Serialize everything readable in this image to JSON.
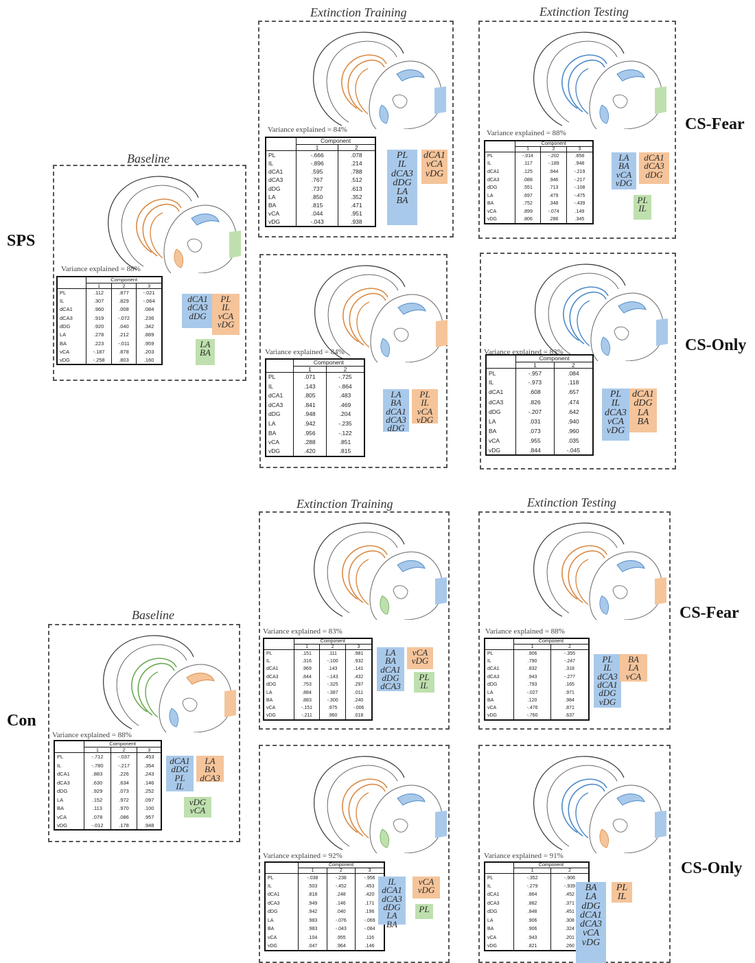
{
  "colors": {
    "blue": "#a9c9ea",
    "orange": "#f5c49a",
    "green": "#bfe0ae"
  },
  "icons": [
    "brain-section-icon"
  ],
  "row_labels": {
    "sps": "SPS",
    "con": "Con",
    "cs_fear_top": "CS-Fear",
    "cs_only_top": "CS-Only",
    "cs_fear_bottom": "CS-Fear",
    "cs_only_bottom": "CS-Only"
  },
  "titles": {
    "baseline": "Baseline",
    "ext_training": "Extinction Training",
    "ext_testing": "Extinction Testing"
  },
  "table_header": "Component",
  "rows": [
    "PL",
    "IL",
    "dCA1",
    "dCA3",
    "dDG",
    "LA",
    "BA",
    "vCA",
    "vDG"
  ],
  "panels": [
    {
      "id": "sps-baseline",
      "variance": "Variance explained = 88%",
      "cols": [
        "1",
        "2",
        "3"
      ],
      "values": [
        [
          ".112",
          ".877",
          "-.021"
        ],
        [
          ".307",
          ".829",
          "-.064"
        ],
        [
          ".960",
          ".008",
          ".084"
        ],
        [
          ".919",
          "-.072",
          ".236"
        ],
        [
          ".920",
          ".040",
          ".342"
        ],
        [
          ".278",
          ".212",
          ".889"
        ],
        [
          ".223",
          "-.011",
          ".959"
        ],
        [
          "-.187",
          ".878",
          ".203"
        ],
        [
          "-.258",
          ".803",
          ".160"
        ]
      ],
      "groups": [
        [
          "dCA1",
          "dCA3",
          "dDG"
        ],
        [
          "PL",
          "IL",
          "vCA",
          "vDG"
        ],
        [
          "LA",
          "BA"
        ]
      ],
      "brain": [
        "orange",
        "blue",
        "green",
        "orange"
      ]
    },
    {
      "id": "sps-ext-training-csfear",
      "variance": "Variance explained = 84%",
      "cols": [
        "1",
        "2"
      ],
      "values": [
        [
          "-.666",
          ".078"
        ],
        [
          "-.896",
          ".214"
        ],
        [
          ".595",
          ".788"
        ],
        [
          ".767",
          ".512"
        ],
        [
          ".737",
          ".613"
        ],
        [
          ".850",
          ".352"
        ],
        [
          ".815",
          ".471"
        ],
        [
          ".044",
          ".951"
        ],
        [
          "-.043",
          ".938"
        ]
      ],
      "groups": [
        [
          "PL",
          "IL",
          "dCA3",
          "dDG",
          "LA",
          "BA"
        ],
        [
          "dCA1",
          "vCA",
          "vDG"
        ]
      ],
      "brain": [
        "orange",
        "blue",
        "blue",
        "blue"
      ]
    },
    {
      "id": "sps-ext-testing-csfear",
      "variance": "Variance explained = 88%",
      "cols": [
        "1",
        "2",
        "3"
      ],
      "values": [
        [
          "-.014",
          "-.202",
          ".858"
        ],
        [
          ".117",
          "-.189",
          ".948"
        ],
        [
          ".125",
          ".944",
          "-.219"
        ],
        [
          ".088",
          ".946",
          "-.217"
        ],
        [
          ".551",
          ".713",
          "-.108"
        ],
        [
          ".697",
          ".479",
          "-.475"
        ],
        [
          ".752",
          ".348",
          "-.439"
        ],
        [
          ".899",
          "-.074",
          ".149"
        ],
        [
          ".806",
          ".286",
          ".345"
        ]
      ],
      "groups": [
        [
          "LA",
          "BA",
          "vCA",
          "vDG"
        ],
        [
          "dCA1",
          "dCA3",
          "dDG"
        ],
        [
          "PL",
          "IL"
        ]
      ],
      "brain": [
        "blue",
        "blue",
        "green",
        "blue"
      ]
    },
    {
      "id": "sps-ext-training-csonly",
      "variance": "Variance explained = 84%",
      "cols": [
        "1",
        "2"
      ],
      "values": [
        [
          ".071",
          "-.725"
        ],
        [
          ".143",
          "-.864"
        ],
        [
          ".805",
          ".483"
        ],
        [
          ".841",
          ".469"
        ],
        [
          ".948",
          ".204"
        ],
        [
          ".942",
          "-.235"
        ],
        [
          ".956",
          "-.122"
        ],
        [
          ".288",
          ".851"
        ],
        [
          ".420",
          ".815"
        ]
      ],
      "groups": [
        [
          "LA",
          "BA",
          "dCA1",
          "dCA3",
          "dDG"
        ],
        [
          "PL",
          "IL",
          "vCA",
          "vDG"
        ]
      ],
      "brain": [
        "orange",
        "blue",
        "orange",
        "blue"
      ]
    },
    {
      "id": "sps-ext-testing-csonly",
      "variance": "Variance explained = 83%",
      "cols": [
        "1",
        "2"
      ],
      "values": [
        [
          "-.957",
          ".084"
        ],
        [
          "-.973",
          ".118"
        ],
        [
          ".608",
          ".657"
        ],
        [
          ".826",
          ".474"
        ],
        [
          "-.207",
          ".642"
        ],
        [
          ".031",
          ".940"
        ],
        [
          ".073",
          ".960"
        ],
        [
          ".955",
          ".035"
        ],
        [
          ".844",
          "-.045"
        ]
      ],
      "groups": [
        [
          "PL",
          "IL",
          "dCA3",
          "vCA",
          "vDG"
        ],
        [
          "dCA1",
          "dDG",
          "LA",
          "BA"
        ]
      ],
      "brain": [
        "blue",
        "blue",
        "blue",
        "blue"
      ]
    },
    {
      "id": "con-baseline",
      "variance": "Variance explained = 88%",
      "cols": [
        "1",
        "2",
        "3"
      ],
      "values": [
        [
          "-.712",
          "-.037",
          ".453"
        ],
        [
          "-.780",
          "-.217",
          ".354"
        ],
        [
          ".883",
          ".226",
          ".243"
        ],
        [
          ".630",
          ".634",
          ".146"
        ],
        [
          ".929",
          ".073",
          ".252"
        ],
        [
          ".152",
          ".972",
          ".097"
        ],
        [
          ".113",
          ".970",
          ".100"
        ],
        [
          ".078",
          ".086",
          ".957"
        ],
        [
          "-.012",
          ".178",
          ".948"
        ]
      ],
      "groups": [
        [
          "dCA1",
          "dDG",
          "PL",
          "IL"
        ],
        [
          "LA",
          "BA",
          "dCA3"
        ],
        [
          "vDG",
          "vCA"
        ]
      ],
      "brain": [
        "green",
        "orange",
        "orange",
        "blue"
      ]
    },
    {
      "id": "con-ext-training-csfear",
      "variance": "Variance explained = 83%",
      "cols": [
        "1",
        "2",
        "3"
      ],
      "values": [
        [
          ".151",
          ".111",
          ".981"
        ],
        [
          ".316",
          "-.100",
          ".932"
        ],
        [
          ".969",
          ".143",
          ".141"
        ],
        [
          ".844",
          "-.143",
          ".432"
        ],
        [
          ".753",
          "-.325",
          ".297"
        ],
        [
          ".884",
          "-.387",
          ".011"
        ],
        [
          ".883",
          "-.300",
          ".240"
        ],
        [
          "-.151",
          ".975",
          "-.006"
        ],
        [
          "-.211",
          ".960",
          ".018"
        ]
      ],
      "groups": [
        [
          "LA",
          "BA",
          "dCA1",
          "dDG",
          "dCA3"
        ],
        [
          "vCA",
          "vDG"
        ],
        [
          "PL",
          "IL"
        ]
      ],
      "brain": [
        "orange",
        "blue",
        "blue",
        "green"
      ]
    },
    {
      "id": "con-ext-testing-csfear",
      "variance": "Variance explained = 88%",
      "cols": [
        "1",
        "2"
      ],
      "values": [
        [
          ".906",
          "-.355"
        ],
        [
          ".790",
          "-.247"
        ],
        [
          ".832",
          ".318"
        ],
        [
          ".943",
          "-.277"
        ],
        [
          ".793",
          ".165"
        ],
        [
          "-.027",
          ".971"
        ],
        [
          ".120",
          ".984"
        ],
        [
          "-.476",
          ".871"
        ],
        [
          "-.760",
          ".637"
        ]
      ],
      "groups": [
        [
          "PL",
          "IL",
          "dCA3",
          "dCA1",
          "dDG",
          "vDG"
        ],
        [
          "BA",
          "LA",
          "vCA"
        ]
      ],
      "brain": [
        "orange",
        "blue",
        "orange",
        "blue"
      ]
    },
    {
      "id": "con-ext-training-csonly",
      "variance": "Variance explained = 92%",
      "cols": [
        "1",
        "2",
        "3"
      ],
      "values": [
        [
          "-.038",
          "-.238",
          "-.956"
        ],
        [
          ".503",
          "-.452",
          ".453"
        ],
        [
          ".818",
          ".248",
          ".420"
        ],
        [
          ".949",
          ".146",
          ".171"
        ],
        [
          ".942",
          ".040",
          ".196"
        ],
        [
          ".983",
          "-.076",
          "-.069"
        ],
        [
          ".983",
          "-.043",
          "-.084"
        ],
        [
          ".104",
          ".955",
          ".116"
        ],
        [
          ".047",
          ".964",
          ".146"
        ]
      ],
      "groups": [
        [
          "IL",
          "dCA1",
          "dCA3",
          "dDG",
          "LA",
          "BA"
        ],
        [
          "vCA",
          "vDG"
        ],
        [
          "PL"
        ]
      ],
      "brain": [
        "orange",
        "blue",
        "blue",
        "green"
      ]
    },
    {
      "id": "con-ext-testing-csonly",
      "variance": "Variance explained = 91%",
      "cols": [
        "1",
        "2"
      ],
      "values": [
        [
          "-.352",
          "-.906"
        ],
        [
          "-.279",
          "-.939"
        ],
        [
          ".864",
          ".452"
        ],
        [
          ".882",
          ".371"
        ],
        [
          ".848",
          ".451"
        ],
        [
          ".906",
          ".308"
        ],
        [
          ".906",
          ".324"
        ],
        [
          ".943",
          ".201"
        ],
        [
          ".821",
          ".260"
        ]
      ],
      "groups": [
        [
          "BA",
          "LA",
          "dDG",
          "dCA1",
          "dCA3",
          "vCA",
          "vDG"
        ],
        [
          "PL",
          "IL"
        ]
      ],
      "brain": [
        "blue",
        "blue",
        "blue",
        "orange"
      ]
    }
  ]
}
